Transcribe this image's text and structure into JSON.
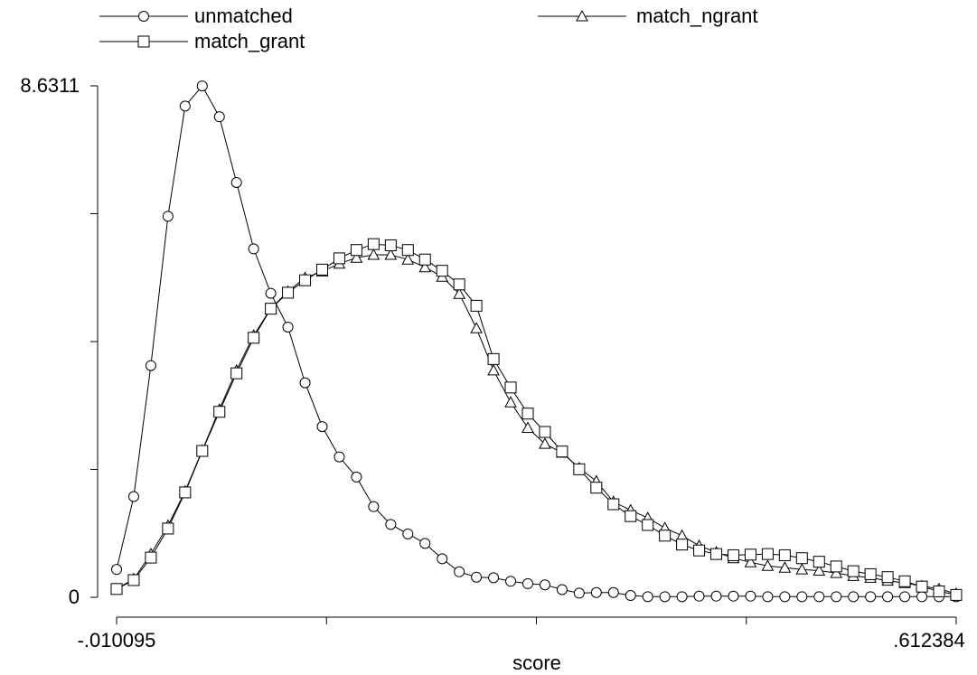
{
  "chart_data": {
    "type": "line",
    "xlabel": "score",
    "ylabel": "",
    "xlim": [
      -0.010095,
      0.612384
    ],
    "ylim": [
      0,
      8.6311
    ],
    "x_tick_labels": [
      "-.010095",
      ".612384"
    ],
    "y_tick_labels": [
      "0",
      "8.6311"
    ],
    "x_minor_ticks": [
      0.145525,
      0.301144,
      0.456764
    ],
    "y_minor_ticks": [
      2.157775,
      4.31555,
      6.473325
    ],
    "grid": false,
    "legend_position": "top",
    "x": [
      -0.010095,
      0.002607,
      0.01531,
      0.028013,
      0.040716,
      0.053419,
      0.066122,
      0.078825,
      0.091527,
      0.10423,
      0.116933,
      0.129636,
      0.142339,
      0.155042,
      0.167745,
      0.180447,
      0.19315,
      0.205853,
      0.218556,
      0.231259,
      0.243962,
      0.256665,
      0.269367,
      0.28207,
      0.294773,
      0.307476,
      0.320179,
      0.332882,
      0.345585,
      0.358287,
      0.37099,
      0.383693,
      0.396396,
      0.409099,
      0.421802,
      0.434505,
      0.447207,
      0.45991,
      0.472613,
      0.485316,
      0.498019,
      0.510722,
      0.523425,
      0.536127,
      0.54883,
      0.561533,
      0.574236,
      0.586939,
      0.599642,
      0.612344
    ],
    "series": [
      {
        "name": "unmatched",
        "marker": "circle",
        "values": [
          0.47,
          1.7,
          3.91,
          6.43,
          8.29,
          8.63,
          8.11,
          7.0,
          5.88,
          5.13,
          4.56,
          3.62,
          2.88,
          2.37,
          2.03,
          1.53,
          1.23,
          1.07,
          0.91,
          0.65,
          0.43,
          0.34,
          0.33,
          0.27,
          0.23,
          0.21,
          0.13,
          0.07,
          0.08,
          0.08,
          0.03,
          0.01,
          0.01,
          0.01,
          0.02,
          0.02,
          0.02,
          0.02,
          0.01,
          0.01,
          0.01,
          0.01,
          0.01,
          0.01,
          0.01,
          0.01,
          0.01,
          0.01,
          0.01,
          0.01
        ]
      },
      {
        "name": "match_ngrant",
        "marker": "triangle",
        "values": [
          0.14,
          0.31,
          0.73,
          1.21,
          1.79,
          2.48,
          3.17,
          3.83,
          4.42,
          4.87,
          5.16,
          5.39,
          5.5,
          5.63,
          5.73,
          5.78,
          5.78,
          5.7,
          5.57,
          5.41,
          5.12,
          4.54,
          3.83,
          3.29,
          2.86,
          2.59,
          2.44,
          2.18,
          1.96,
          1.61,
          1.47,
          1.34,
          1.17,
          1.04,
          0.87,
          0.76,
          0.66,
          0.59,
          0.53,
          0.5,
          0.47,
          0.45,
          0.41,
          0.36,
          0.33,
          0.28,
          0.24,
          0.19,
          0.14,
          0.06
        ]
      },
      {
        "name": "match_grant",
        "marker": "square",
        "values": [
          0.14,
          0.29,
          0.67,
          1.16,
          1.77,
          2.47,
          3.13,
          3.78,
          4.38,
          4.87,
          5.14,
          5.35,
          5.53,
          5.72,
          5.86,
          5.96,
          5.94,
          5.86,
          5.7,
          5.51,
          5.28,
          4.92,
          4.02,
          3.54,
          3.1,
          2.79,
          2.46,
          2.16,
          1.85,
          1.57,
          1.37,
          1.22,
          1.04,
          0.89,
          0.79,
          0.73,
          0.71,
          0.72,
          0.73,
          0.71,
          0.66,
          0.6,
          0.52,
          0.44,
          0.39,
          0.34,
          0.27,
          0.18,
          0.1,
          0.04
        ]
      }
    ]
  }
}
